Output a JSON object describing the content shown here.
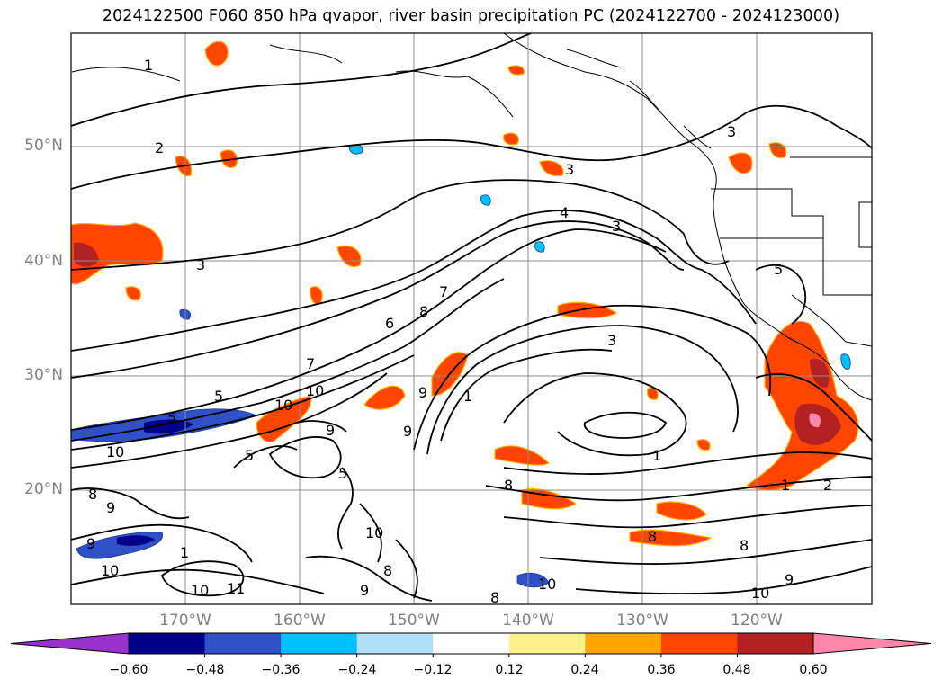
{
  "title": "2024122500 F060 850 hPa qvapor, river basin precipitation PC (2024122700 - 2024123000)",
  "lat_labels": [
    "50°N",
    "40°N",
    "30°N",
    "20°N"
  ],
  "lon_labels": [
    "170°W",
    "160°W",
    "150°W",
    "140°W",
    "130°W",
    "120°W"
  ],
  "contour_labels": [
    "1",
    "2",
    "3",
    "3",
    "3",
    "4",
    "3",
    "5",
    "6",
    "7",
    "7",
    "8",
    "9",
    "10",
    "5",
    "5",
    "10",
    "8",
    "9",
    "9",
    "10",
    "11",
    "10",
    "1",
    "10",
    "8",
    "9",
    "5",
    "9",
    "8",
    "9",
    "10",
    "8",
    "1",
    "3",
    "1",
    "2",
    "8",
    "10",
    "9",
    "8",
    "10",
    "5",
    "1"
  ],
  "colorbar": {
    "ticks": [
      "−0.60",
      "−0.48",
      "−0.36",
      "−0.24",
      "−0.12",
      "0.12",
      "0.24",
      "0.36",
      "0.48",
      "0.60"
    ],
    "colors": [
      "#9932cc",
      "#00008b",
      "#3050c8",
      "#00bfff",
      "#b0e0f8",
      "#ffffff",
      "#fff08c",
      "#ffa500",
      "#ff4500",
      "#b22222",
      "#ff88aa"
    ]
  }
}
